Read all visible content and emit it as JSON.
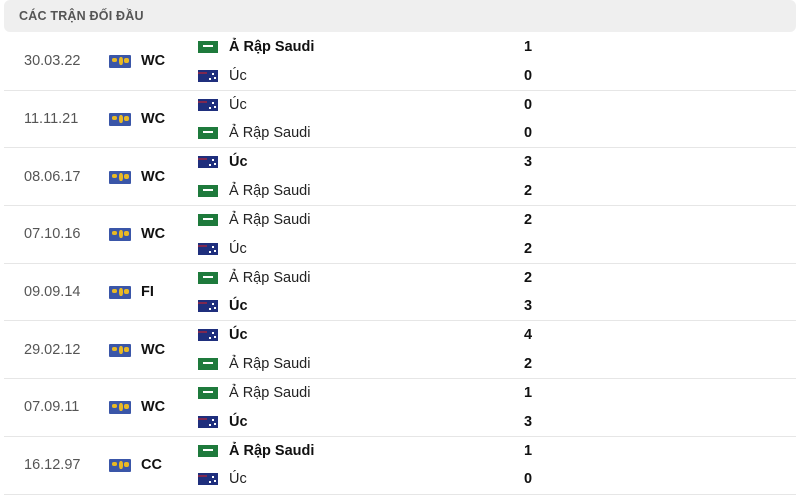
{
  "header": {
    "title": "CÁC TRẬN ĐỐI ĐẦU"
  },
  "colors": {
    "saudi_flag": "#1e7a3c",
    "australia_flag": "#1f2f7d",
    "competition_icon": "#3a56a8"
  },
  "matches": [
    {
      "date": "30.03.22",
      "competition": "WC",
      "home": {
        "name": "Ả Rập Saudi",
        "flag": "saudi-flag",
        "score": "1",
        "winner": true
      },
      "away": {
        "name": "Úc",
        "flag": "australia-flag",
        "score": "0",
        "winner": false
      }
    },
    {
      "date": "11.11.21",
      "competition": "WC",
      "home": {
        "name": "Úc",
        "flag": "australia-flag",
        "score": "0",
        "winner": false
      },
      "away": {
        "name": "Ả Rập Saudi",
        "flag": "saudi-flag",
        "score": "0",
        "winner": false
      }
    },
    {
      "date": "08.06.17",
      "competition": "WC",
      "home": {
        "name": "Úc",
        "flag": "australia-flag",
        "score": "3",
        "winner": true
      },
      "away": {
        "name": "Ả Rập Saudi",
        "flag": "saudi-flag",
        "score": "2",
        "winner": false
      }
    },
    {
      "date": "07.10.16",
      "competition": "WC",
      "home": {
        "name": "Ả Rập Saudi",
        "flag": "saudi-flag",
        "score": "2",
        "winner": false
      },
      "away": {
        "name": "Úc",
        "flag": "australia-flag",
        "score": "2",
        "winner": false
      }
    },
    {
      "date": "09.09.14",
      "competition": "FI",
      "home": {
        "name": "Ả Rập Saudi",
        "flag": "saudi-flag",
        "score": "2",
        "winner": false
      },
      "away": {
        "name": "Úc",
        "flag": "australia-flag",
        "score": "3",
        "winner": true
      }
    },
    {
      "date": "29.02.12",
      "competition": "WC",
      "home": {
        "name": "Úc",
        "flag": "australia-flag",
        "score": "4",
        "winner": true
      },
      "away": {
        "name": "Ả Rập Saudi",
        "flag": "saudi-flag",
        "score": "2",
        "winner": false
      }
    },
    {
      "date": "07.09.11",
      "competition": "WC",
      "home": {
        "name": "Ả Rập Saudi",
        "flag": "saudi-flag",
        "score": "1",
        "winner": false
      },
      "away": {
        "name": "Úc",
        "flag": "australia-flag",
        "score": "3",
        "winner": true
      }
    },
    {
      "date": "16.12.97",
      "competition": "CC",
      "home": {
        "name": "Ả Rập Saudi",
        "flag": "saudi-flag",
        "score": "1",
        "winner": true
      },
      "away": {
        "name": "Úc",
        "flag": "australia-flag",
        "score": "0",
        "winner": false
      }
    }
  ]
}
